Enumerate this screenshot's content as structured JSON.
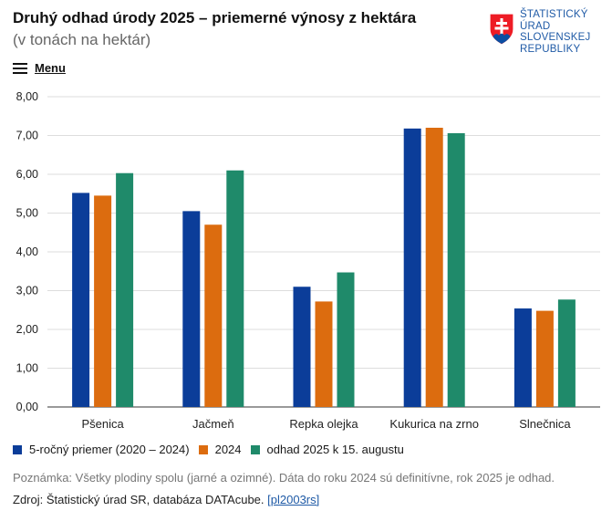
{
  "header": {
    "title": "Druhý odhad úrody 2025 – priemerné výnosy z hektára",
    "subtitle": "(v tonách na hektár)"
  },
  "logo": {
    "lines": [
      "ŠTATISTICKÝ",
      "ÚRAD",
      "SLOVENSKEJ",
      "REPUBLIKY"
    ],
    "color": "#1f5aa6"
  },
  "menu": {
    "label": "Menu",
    "icon": "hamburger-icon"
  },
  "chart_data": {
    "type": "bar",
    "categories": [
      "Pšenica",
      "Jačmeň",
      "Repka olejka",
      "Kukurica na zrno",
      "Slnečnica"
    ],
    "series": [
      {
        "name": "5-ročný priemer (2020 – 2024)",
        "color": "#0b3d99",
        "values": [
          5.52,
          5.05,
          3.1,
          7.18,
          2.54
        ]
      },
      {
        "name": "2024",
        "color": "#dc6c0f",
        "values": [
          5.45,
          4.7,
          2.72,
          7.2,
          2.48
        ]
      },
      {
        "name": "odhad 2025 k 15. augustu",
        "color": "#1f8a6a",
        "values": [
          6.03,
          6.1,
          3.47,
          7.06,
          2.77
        ]
      }
    ],
    "ylim": [
      0,
      8
    ],
    "yticks": [
      "0,00",
      "1,00",
      "2,00",
      "3,00",
      "4,00",
      "5,00",
      "6,00",
      "7,00",
      "8,00"
    ],
    "grid": true,
    "legend": "bottom-left"
  },
  "footer": {
    "note": "Poznámka: Všetky plodiny spolu (jarné a ozimné). Dáta do roku 2024 sú definitívne, rok 2025 je odhad.",
    "source_prefix": "Zdroj: Štatistický úrad SR, databáza DATAcube.",
    "source_link": "[pl2003rs]"
  }
}
